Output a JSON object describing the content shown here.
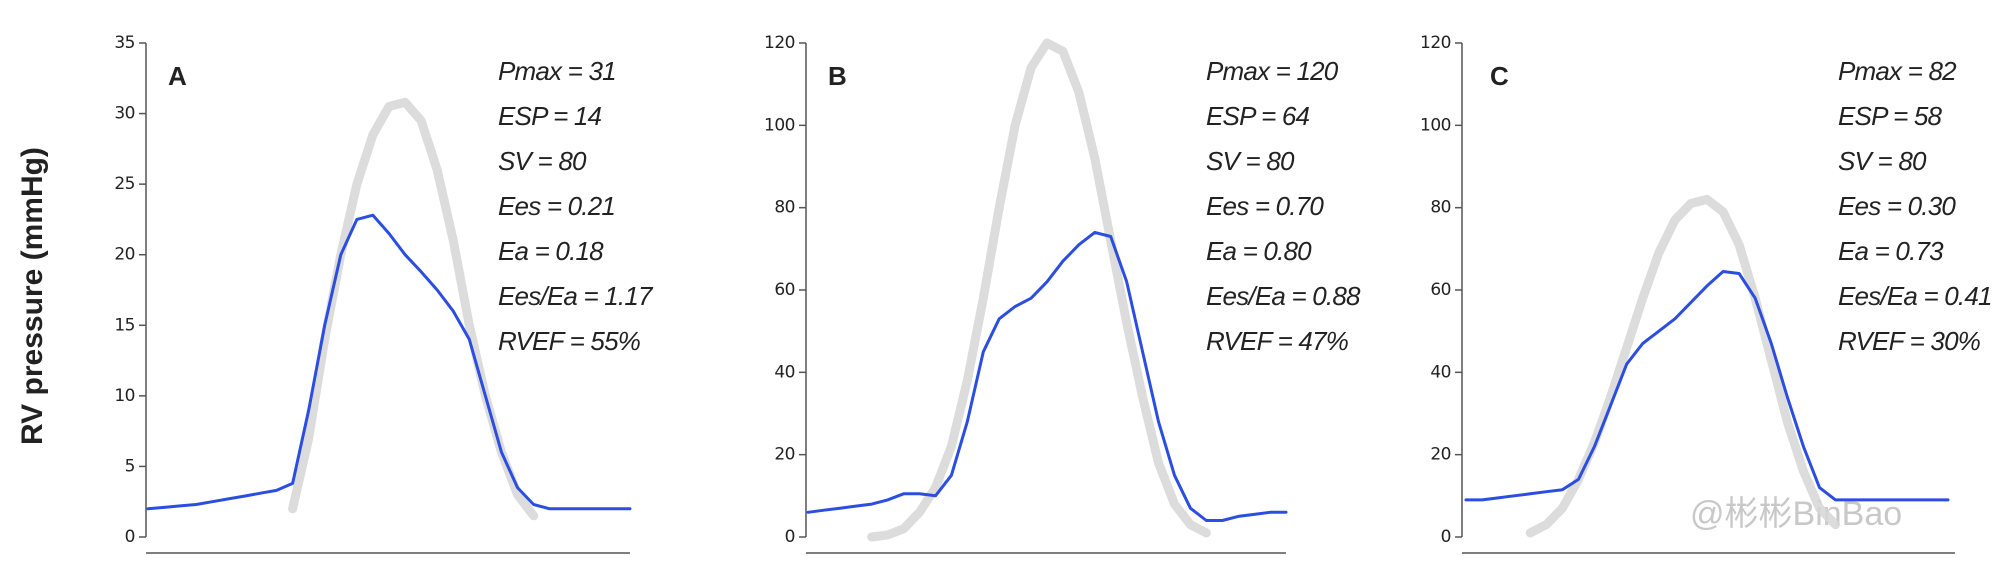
{
  "chart_data": [
    {
      "type": "line",
      "title": "A",
      "y_label": "RV pressure (mmHg)",
      "annotations": [
        "Pmax = 31",
        "ESP = 14",
        "SV = 80",
        "Ees = 0.21",
        "Ea = 0.18",
        "Ees/Ea = 1.17",
        "RVEF = 55%"
      ],
      "ylim": [
        0,
        35
      ],
      "yticks": [
        0,
        5,
        10,
        15,
        20,
        25,
        30,
        35
      ],
      "series": [
        {
          "color": "#d6d6d6",
          "values": [
            null,
            null,
            null,
            null,
            null,
            null,
            null,
            null,
            null,
            2,
            7,
            14,
            20,
            25,
            28.5,
            30.5,
            30.8,
            29.5,
            26,
            21,
            15,
            10,
            6,
            3,
            1.5,
            null,
            null,
            null,
            null,
            null,
            null
          ]
        },
        {
          "color": "#2b4ee0",
          "values": [
            2,
            2.1,
            2.2,
            2.3,
            2.5,
            2.7,
            2.9,
            3.1,
            3.3,
            3.8,
            9,
            15,
            20,
            22.5,
            22.8,
            21.5,
            20,
            18.8,
            17.5,
            16,
            14,
            10,
            6,
            3.5,
            2.3,
            2,
            2,
            2,
            2,
            2,
            2
          ]
        }
      ]
    },
    {
      "type": "line",
      "title": "B",
      "annotations": [
        "Pmax = 120",
        "ESP = 64",
        "SV = 80",
        "Ees = 0.70",
        "Ea = 0.80",
        "Ees/Ea = 0.88",
        "RVEF = 47%"
      ],
      "ylim": [
        0,
        120
      ],
      "yticks": [
        0,
        20,
        40,
        60,
        80,
        100,
        120
      ],
      "series": [
        {
          "color": "#d6d6d6",
          "values": [
            null,
            null,
            null,
            null,
            0,
            0.5,
            2,
            6,
            12,
            22,
            38,
            58,
            80,
            100,
            114,
            120,
            118,
            108,
            92,
            72,
            52,
            34,
            18,
            8,
            3,
            1,
            null,
            null,
            null,
            null,
            null
          ]
        },
        {
          "color": "#2b4ee0",
          "values": [
            6,
            6.5,
            7,
            7.5,
            8,
            9,
            10.5,
            10.5,
            10,
            15,
            28,
            45,
            53,
            56,
            58,
            62,
            67,
            71,
            74,
            73,
            62,
            45,
            28,
            15,
            7,
            4,
            4,
            5,
            5.5,
            6,
            6
          ]
        }
      ]
    },
    {
      "type": "line",
      "title": "C",
      "annotations": [
        "Pmax = 82",
        "ESP = 58",
        "SV = 80",
        "Ees = 0.30",
        "Ea = 0.73",
        "Ees/Ea = 0.41",
        "RVEF = 30%"
      ],
      "ylim": [
        0,
        120
      ],
      "yticks": [
        0,
        20,
        40,
        60,
        80,
        100,
        120
      ],
      "series": [
        {
          "color": "#d6d6d6",
          "values": [
            null,
            null,
            null,
            null,
            1,
            3,
            7,
            14,
            23,
            34,
            46,
            58,
            69,
            77,
            81,
            82,
            79,
            71,
            58,
            43,
            28,
            16,
            7,
            3,
            null,
            null,
            null,
            null,
            null,
            null,
            null
          ]
        },
        {
          "color": "#2b4ee0",
          "values": [
            9,
            9,
            9.5,
            10,
            10.5,
            11,
            11.5,
            14,
            22,
            32,
            42,
            47,
            50,
            53,
            57,
            61,
            64.5,
            64,
            58,
            47,
            34,
            22,
            12,
            9,
            9,
            9,
            9,
            9,
            9,
            9,
            9
          ]
        }
      ]
    }
  ],
  "watermark": "@彬彬BinBao"
}
